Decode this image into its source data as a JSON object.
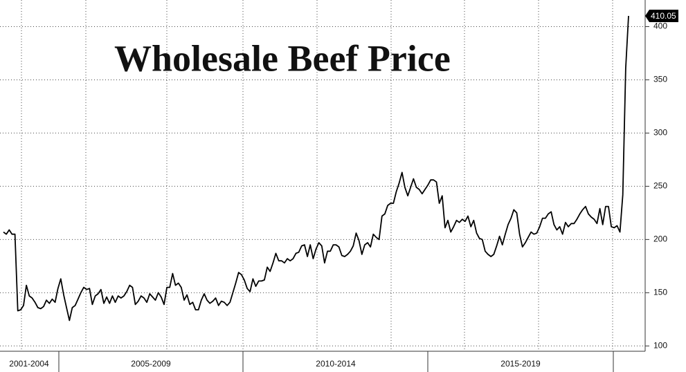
{
  "chart_data": {
    "type": "line",
    "title": "Wholesale Beef Price",
    "period_labels": [
      "2001-2004",
      "2005-2009",
      "2010-2014",
      "2015-2019"
    ],
    "series": [
      {
        "color": "#000000",
        "values": [
          207,
          205,
          209,
          205,
          205,
          133,
          134,
          138,
          157,
          147,
          145,
          141,
          136,
          135,
          137,
          143,
          140,
          144,
          141,
          154,
          163,
          148,
          136,
          124,
          136,
          138,
          144,
          150,
          155,
          153,
          154,
          139,
          147,
          149,
          153,
          140,
          146,
          140,
          147,
          141,
          147,
          145,
          147,
          151,
          157,
          155,
          139,
          142,
          147,
          145,
          141,
          149,
          146,
          143,
          150,
          146,
          139,
          155,
          155,
          168,
          157,
          159,
          155,
          143,
          148,
          139,
          141,
          134,
          134,
          143,
          149,
          143,
          140,
          142,
          145,
          138,
          142,
          141,
          138,
          141,
          150,
          159,
          169,
          167,
          162,
          154,
          151,
          163,
          156,
          161,
          161,
          162,
          174,
          170,
          178,
          187,
          180,
          180,
          178,
          182,
          180,
          182,
          187,
          188,
          194,
          195,
          184,
          195,
          182,
          191,
          197,
          194,
          178,
          189,
          189,
          195,
          195,
          193,
          185,
          184,
          186,
          189,
          194,
          206,
          199,
          186,
          195,
          197,
          193,
          205,
          202,
          200,
          222,
          224,
          232,
          234,
          234,
          245,
          253,
          263,
          249,
          241,
          249,
          257,
          249,
          247,
          243,
          247,
          251,
          256,
          256,
          254,
          234,
          241,
          211,
          218,
          207,
          212,
          218,
          216,
          219,
          217,
          222,
          212,
          218,
          206,
          201,
          200,
          189,
          186,
          184,
          186,
          194,
          203,
          195,
          205,
          214,
          220,
          228,
          225,
          205,
          193,
          197,
          202,
          207,
          205,
          206,
          212,
          220,
          220,
          224,
          226,
          214,
          209,
          212,
          205,
          216,
          212,
          215,
          215,
          219,
          224,
          228,
          231,
          224,
          221,
          219,
          215,
          229,
          214,
          231,
          231,
          212,
          211,
          213,
          207,
          242,
          361,
          410.05
        ]
      }
    ],
    "annotations": [
      {
        "text": "410.05",
        "y": 410.05
      }
    ],
    "ylim": [
      95,
      425
    ],
    "yticks": [
      100,
      150,
      200,
      250,
      300,
      350,
      400
    ],
    "grid": true
  }
}
